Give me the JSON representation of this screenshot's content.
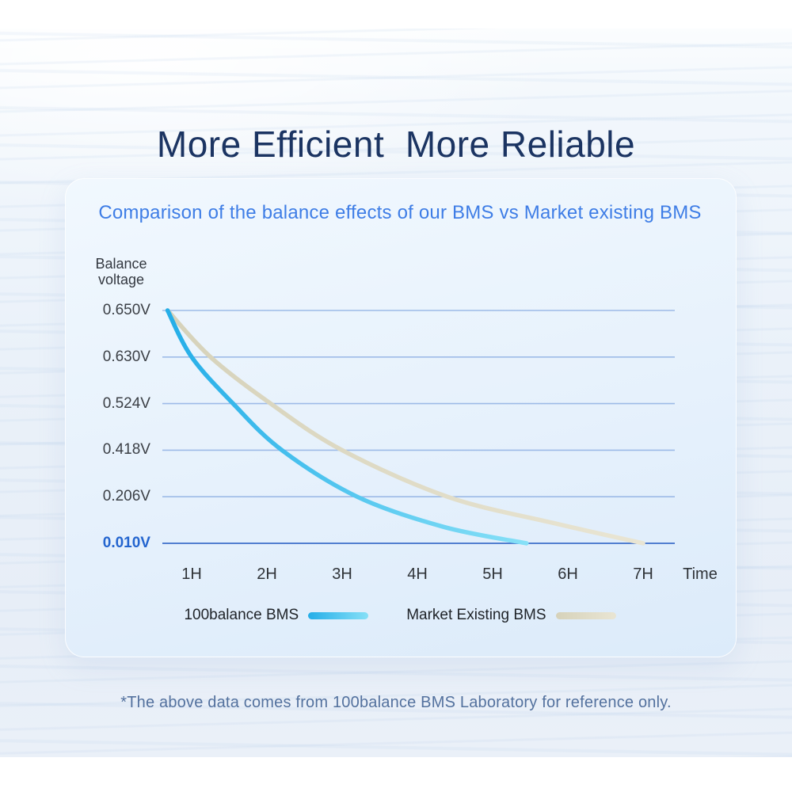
{
  "page": {
    "title": "More Efficient  More Reliable",
    "footnote": "*The above data comes from 100balance BMS Laboratory for reference only."
  },
  "chart_data": {
    "type": "line",
    "title": "Comparison of the balance effects of our BMS vs Market existing BMS",
    "y_axis_label": [
      "Balance",
      "voltage"
    ],
    "x_axis_label": "Time",
    "grid": true,
    "legend_position": "bottom",
    "y_ticks": [
      {
        "label": "0.650V",
        "value": 0.65,
        "highlight": false
      },
      {
        "label": "0.630V",
        "value": 0.63,
        "highlight": false
      },
      {
        "label": "0.524V",
        "value": 0.524,
        "highlight": false
      },
      {
        "label": "0.418V",
        "value": 0.418,
        "highlight": false
      },
      {
        "label": "0.206V",
        "value": 0.206,
        "highlight": false
      },
      {
        "label": "0.010V",
        "value": 0.01,
        "highlight": true
      }
    ],
    "x_ticks": [
      {
        "label": "1H",
        "hour": 1
      },
      {
        "label": "2H",
        "hour": 2
      },
      {
        "label": "3H",
        "hour": 3
      },
      {
        "label": "4H",
        "hour": 4
      },
      {
        "label": "5H",
        "hour": 5
      },
      {
        "label": "6H",
        "hour": 6
      },
      {
        "label": "7H",
        "hour": 7
      }
    ],
    "series": [
      {
        "name": "100balance BMS",
        "color": "#25aee8",
        "color_end": "#86e0f7",
        "points": [
          {
            "hour": 0.68,
            "voltage": 0.65
          },
          {
            "hour": 1.0,
            "voltage": 0.63
          },
          {
            "hour": 1.55,
            "voltage": 0.524
          },
          {
            "hour": 2.2,
            "voltage": 0.418
          },
          {
            "hour": 3.2,
            "voltage": 0.206
          },
          {
            "hour": 4.35,
            "voltage": 0.079
          },
          {
            "hour": 5.45,
            "voltage": 0.01
          }
        ]
      },
      {
        "name": "Market Existing BMS",
        "color": "#d6d2ba",
        "color_end": "#e9e5d3",
        "points": [
          {
            "hour": 0.68,
            "voltage": 0.65
          },
          {
            "hour": 1.25,
            "voltage": 0.63
          },
          {
            "hour": 2.05,
            "voltage": 0.524
          },
          {
            "hour": 3.0,
            "voltage": 0.418
          },
          {
            "hour": 4.4,
            "voltage": 0.206
          },
          {
            "hour": 5.8,
            "voltage": 0.096
          },
          {
            "hour": 7.0,
            "voltage": 0.01
          }
        ]
      }
    ],
    "colors": {
      "grid_line": "#84a8e0",
      "grid_line_bottom": "#4a78ce",
      "main_title": "#1b3462",
      "chart_title": "#3e7de6",
      "tick_highlight": "#2465cf",
      "footnote": "#53719e"
    }
  }
}
